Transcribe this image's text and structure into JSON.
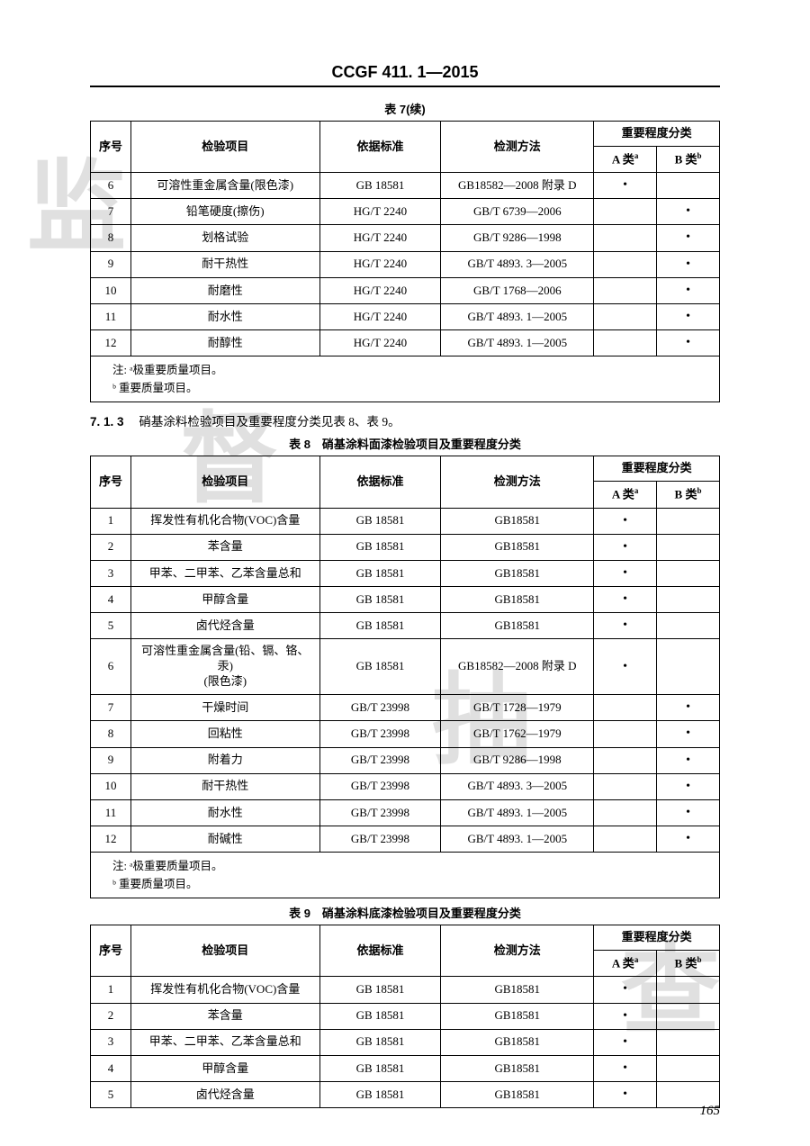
{
  "document": {
    "header_title": "CCGF 411. 1—2015",
    "page_number": "165",
    "watermark_chars": [
      "监",
      "督",
      "抽",
      "查"
    ]
  },
  "table7": {
    "caption": "表 7(续)",
    "columns": {
      "seq": "序号",
      "item": "检验项目",
      "std": "依据标准",
      "method": "检测方法",
      "cat_group": "重要程度分类",
      "a": "A 类",
      "a_sup": "a",
      "b": "B 类",
      "b_sup": "b"
    },
    "rows": [
      {
        "seq": "6",
        "item": "可溶性重金属含量(限色漆)",
        "std": "GB 18581",
        "method": "GB18582—2008 附录 D",
        "a": "•",
        "b": ""
      },
      {
        "seq": "7",
        "item": "铅笔硬度(擦伤)",
        "std": "HG/T 2240",
        "method": "GB/T 6739—2006",
        "a": "",
        "b": "•"
      },
      {
        "seq": "8",
        "item": "划格试验",
        "std": "HG/T 2240",
        "method": "GB/T 9286—1998",
        "a": "",
        "b": "•"
      },
      {
        "seq": "9",
        "item": "耐干热性",
        "std": "HG/T 2240",
        "method": "GB/T 4893. 3—2005",
        "a": "",
        "b": "•"
      },
      {
        "seq": "10",
        "item": "耐磨性",
        "std": "HG/T 2240",
        "method": "GB/T 1768—2006",
        "a": "",
        "b": "•"
      },
      {
        "seq": "11",
        "item": "耐水性",
        "std": "HG/T 2240",
        "method": "GB/T 4893. 1—2005",
        "a": "",
        "b": "•"
      },
      {
        "seq": "12",
        "item": "耐醇性",
        "std": "HG/T 2240",
        "method": "GB/T 4893. 1—2005",
        "a": "",
        "b": "•"
      }
    ],
    "note_a": "注: ᵃ极重要质量项目。",
    "note_b": "ᵇ 重要质量项目。"
  },
  "section713": {
    "num": "7. 1. 3",
    "text": "硝基涂料检验项目及重要程度分类见表 8、表 9。"
  },
  "table8": {
    "caption": "表 8　硝基涂料面漆检验项目及重要程度分类",
    "columns": {
      "seq": "序号",
      "item": "检验项目",
      "std": "依据标准",
      "method": "检测方法",
      "cat_group": "重要程度分类",
      "a": "A 类",
      "a_sup": "a",
      "b": "B 类",
      "b_sup": "b"
    },
    "rows": [
      {
        "seq": "1",
        "item": "挥发性有机化合物(VOC)含量",
        "std": "GB 18581",
        "method": "GB18581",
        "a": "•",
        "b": ""
      },
      {
        "seq": "2",
        "item": "苯含量",
        "std": "GB 18581",
        "method": "GB18581",
        "a": "•",
        "b": ""
      },
      {
        "seq": "3",
        "item": "甲苯、二甲苯、乙苯含量总和",
        "std": "GB 18581",
        "method": "GB18581",
        "a": "•",
        "b": ""
      },
      {
        "seq": "4",
        "item": "甲醇含量",
        "std": "GB 18581",
        "method": "GB18581",
        "a": "•",
        "b": ""
      },
      {
        "seq": "5",
        "item": "卤代烃含量",
        "std": "GB 18581",
        "method": "GB18581",
        "a": "•",
        "b": ""
      },
      {
        "seq": "6",
        "item": "可溶性重金属含量(铅、镉、铬、汞)\n(限色漆)",
        "std": "GB 18581",
        "method": "GB18582—2008 附录 D",
        "a": "•",
        "b": ""
      },
      {
        "seq": "7",
        "item": "干燥时间",
        "std": "GB/T 23998",
        "method": "GB/T 1728—1979",
        "a": "",
        "b": "•"
      },
      {
        "seq": "8",
        "item": "回粘性",
        "std": "GB/T 23998",
        "method": "GB/T 1762—1979",
        "a": "",
        "b": "•"
      },
      {
        "seq": "9",
        "item": "附着力",
        "std": "GB/T 23998",
        "method": "GB/T 9286—1998",
        "a": "",
        "b": "•"
      },
      {
        "seq": "10",
        "item": "耐干热性",
        "std": "GB/T 23998",
        "method": "GB/T 4893. 3—2005",
        "a": "",
        "b": "•"
      },
      {
        "seq": "11",
        "item": "耐水性",
        "std": "GB/T 23998",
        "method": "GB/T 4893. 1—2005",
        "a": "",
        "b": "•"
      },
      {
        "seq": "12",
        "item": "耐碱性",
        "std": "GB/T 23998",
        "method": "GB/T 4893. 1—2005",
        "a": "",
        "b": "•"
      }
    ],
    "note_a": "注: ᵃ极重要质量项目。",
    "note_b": "ᵇ 重要质量项目。"
  },
  "table9": {
    "caption": "表 9　硝基涂料底漆检验项目及重要程度分类",
    "columns": {
      "seq": "序号",
      "item": "检验项目",
      "std": "依据标准",
      "method": "检测方法",
      "cat_group": "重要程度分类",
      "a": "A 类",
      "a_sup": "a",
      "b": "B 类",
      "b_sup": "b"
    },
    "rows": [
      {
        "seq": "1",
        "item": "挥发性有机化合物(VOC)含量",
        "std": "GB 18581",
        "method": "GB18581",
        "a": "•",
        "b": ""
      },
      {
        "seq": "2",
        "item": "苯含量",
        "std": "GB 18581",
        "method": "GB18581",
        "a": "•",
        "b": ""
      },
      {
        "seq": "3",
        "item": "甲苯、二甲苯、乙苯含量总和",
        "std": "GB 18581",
        "method": "GB18581",
        "a": "•",
        "b": ""
      },
      {
        "seq": "4",
        "item": "甲醇含量",
        "std": "GB 18581",
        "method": "GB18581",
        "a": "•",
        "b": ""
      },
      {
        "seq": "5",
        "item": "卤代烃含量",
        "std": "GB 18581",
        "method": "GB18581",
        "a": "•",
        "b": ""
      }
    ]
  }
}
